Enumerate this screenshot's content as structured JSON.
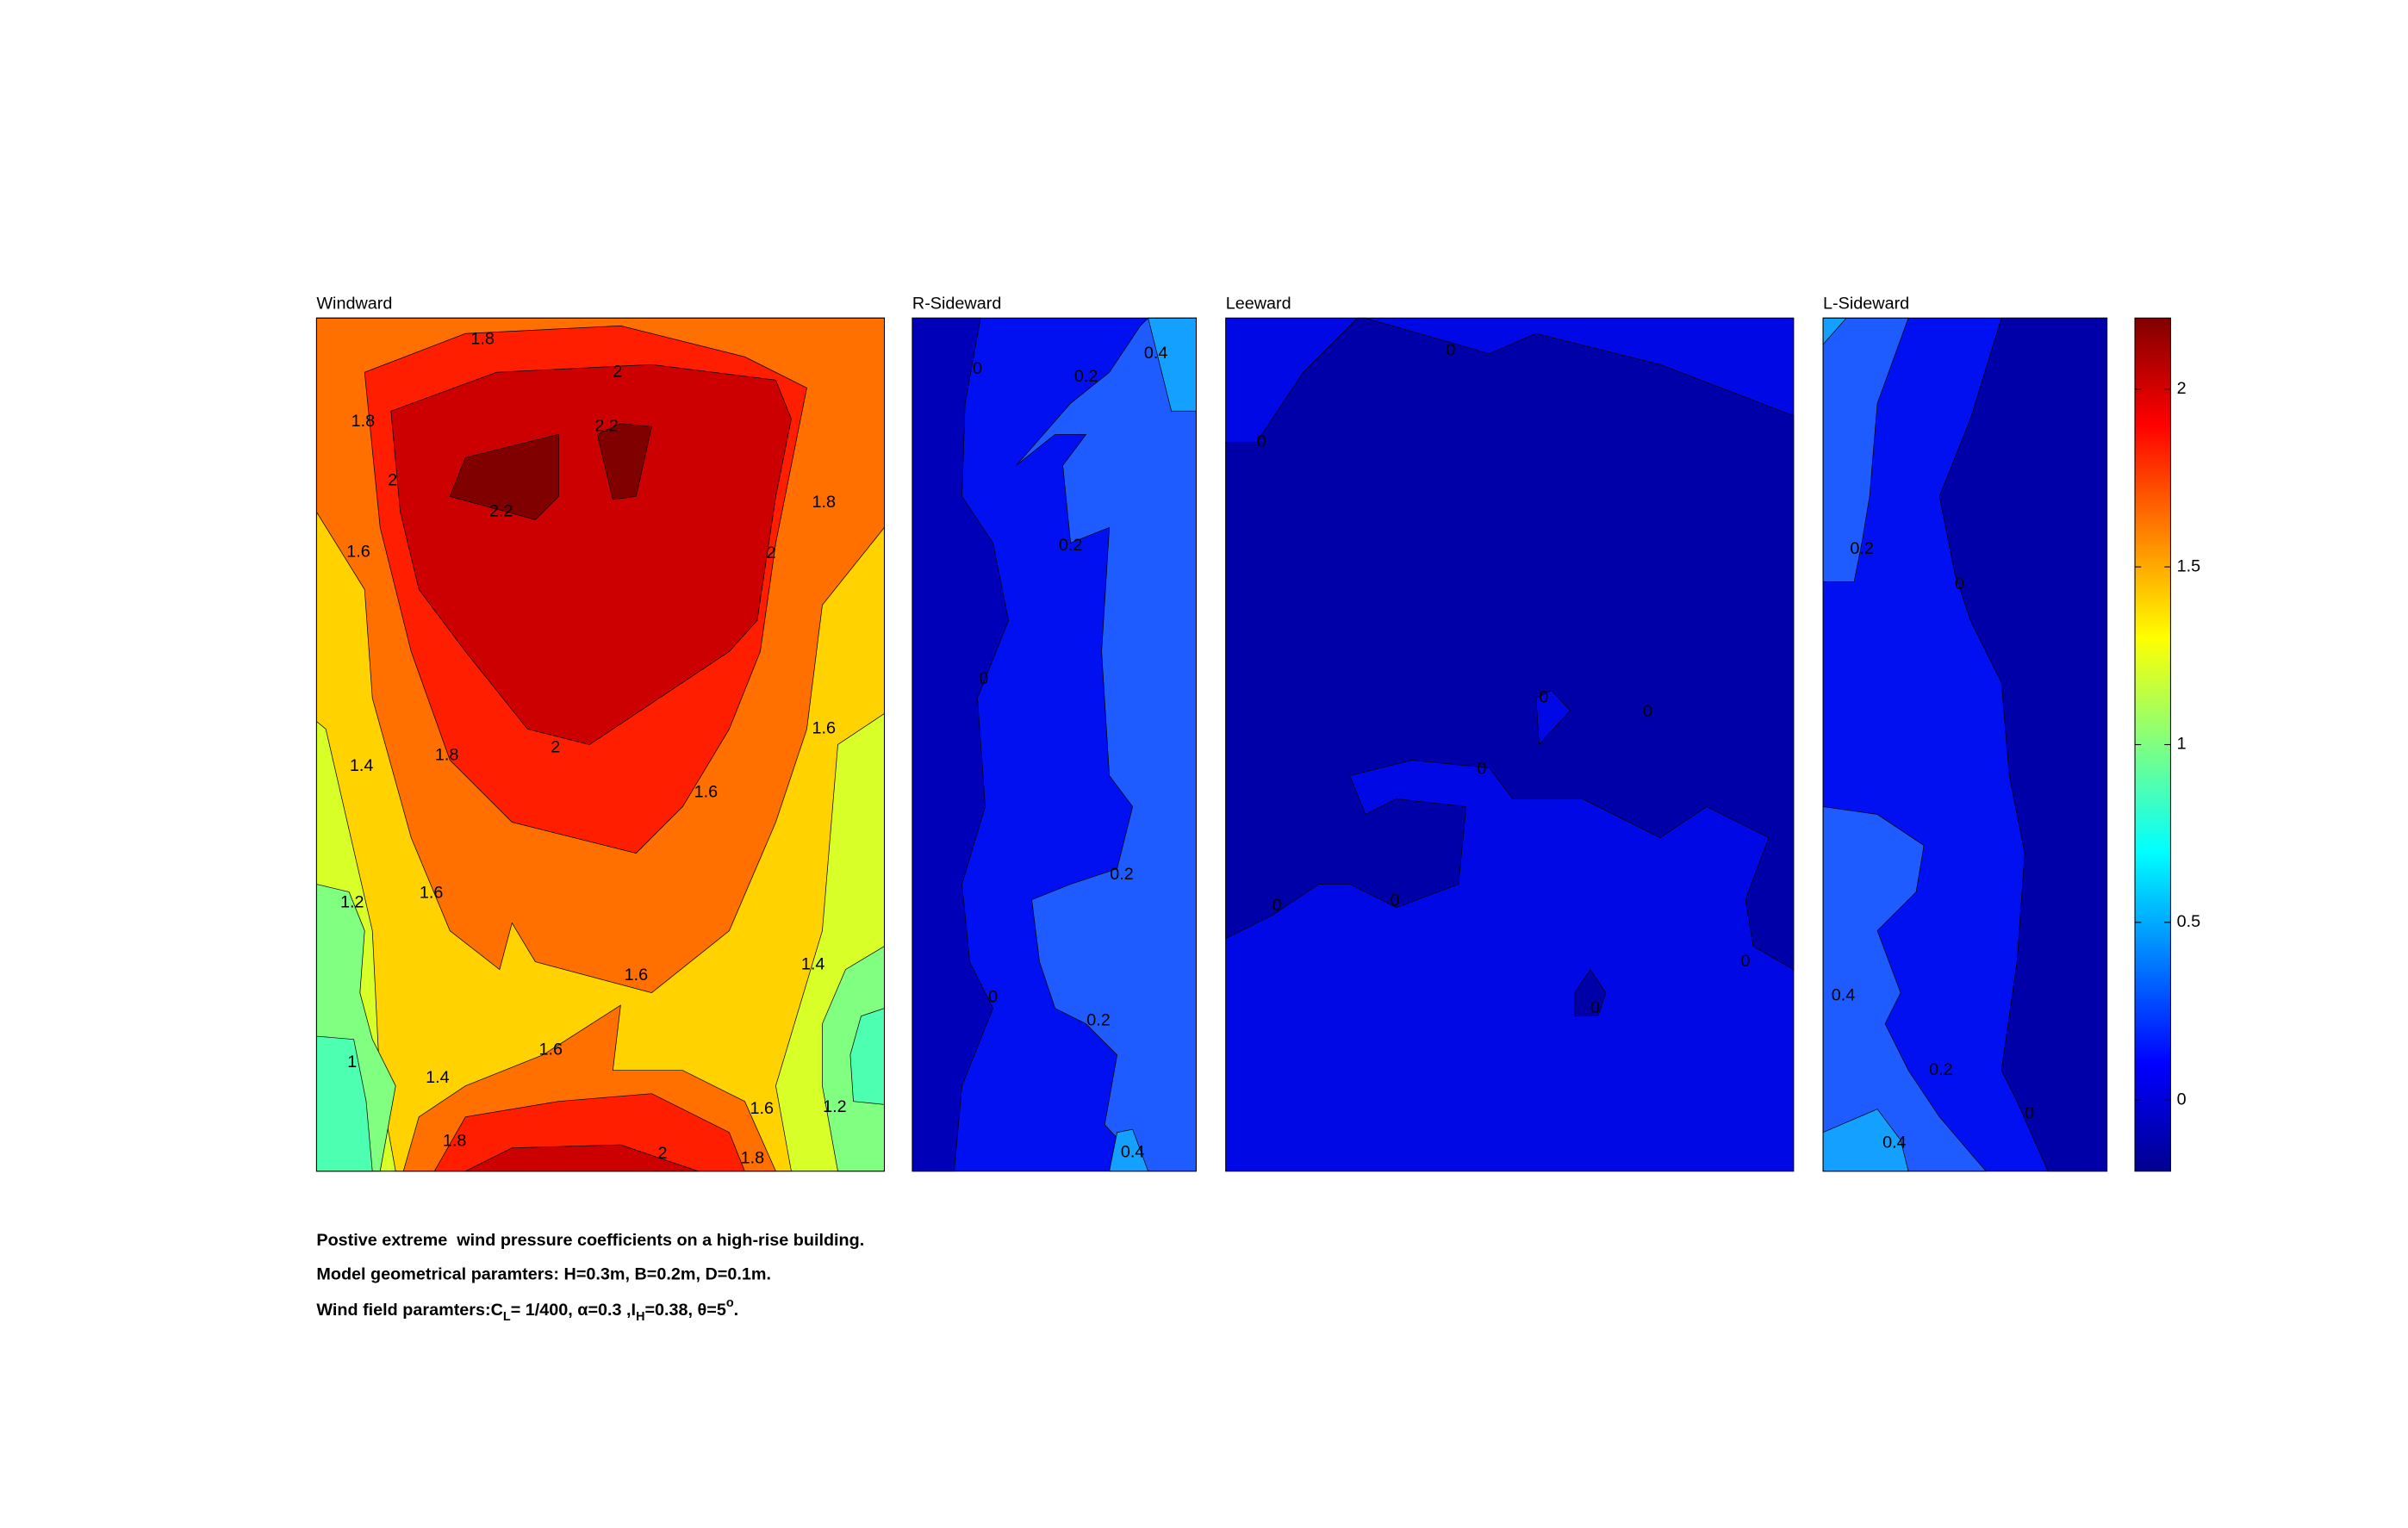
{
  "chart_data": {
    "type": "contour",
    "panels": [
      {
        "title": "Windward",
        "contour_labels": [
          1.8,
          2,
          1.8,
          2.2,
          2,
          2.2,
          1.8,
          1.6,
          2,
          1.6,
          1.4,
          1.8,
          2,
          1.6,
          1.2,
          1.6,
          1.6,
          1.4,
          1,
          1.4,
          1.6,
          1.6,
          1.2,
          1.8,
          2,
          1.8
        ]
      },
      {
        "title": "R-Sideward",
        "contour_labels": [
          0,
          0.2,
          0.4,
          0.2,
          0,
          0.2,
          0,
          0.2,
          0.4
        ]
      },
      {
        "title": "Leeward",
        "contour_labels": [
          0,
          0,
          0,
          0,
          0,
          0,
          0,
          0,
          0
        ]
      },
      {
        "title": "L-Sideward",
        "contour_labels": [
          0.2,
          0,
          0.4,
          0.2,
          0,
          0.4
        ]
      }
    ],
    "colorbar": {
      "lim": [
        -0.2,
        2.2
      ],
      "ticks": [
        0,
        0.5,
        1,
        1.5,
        2
      ]
    },
    "caption": {
      "line1": "Postive extreme  wind pressure coefficients on a high-rise building.",
      "line2": "Model geometrical paramters: H=0.3m, B=0.2m, D=0.1m.",
      "line3": [
        "Wind field paramters:C",
        "L",
        "= 1/400, α=0.3 ,I",
        "H",
        "=0.38, θ=5",
        "o",
        "."
      ]
    }
  }
}
